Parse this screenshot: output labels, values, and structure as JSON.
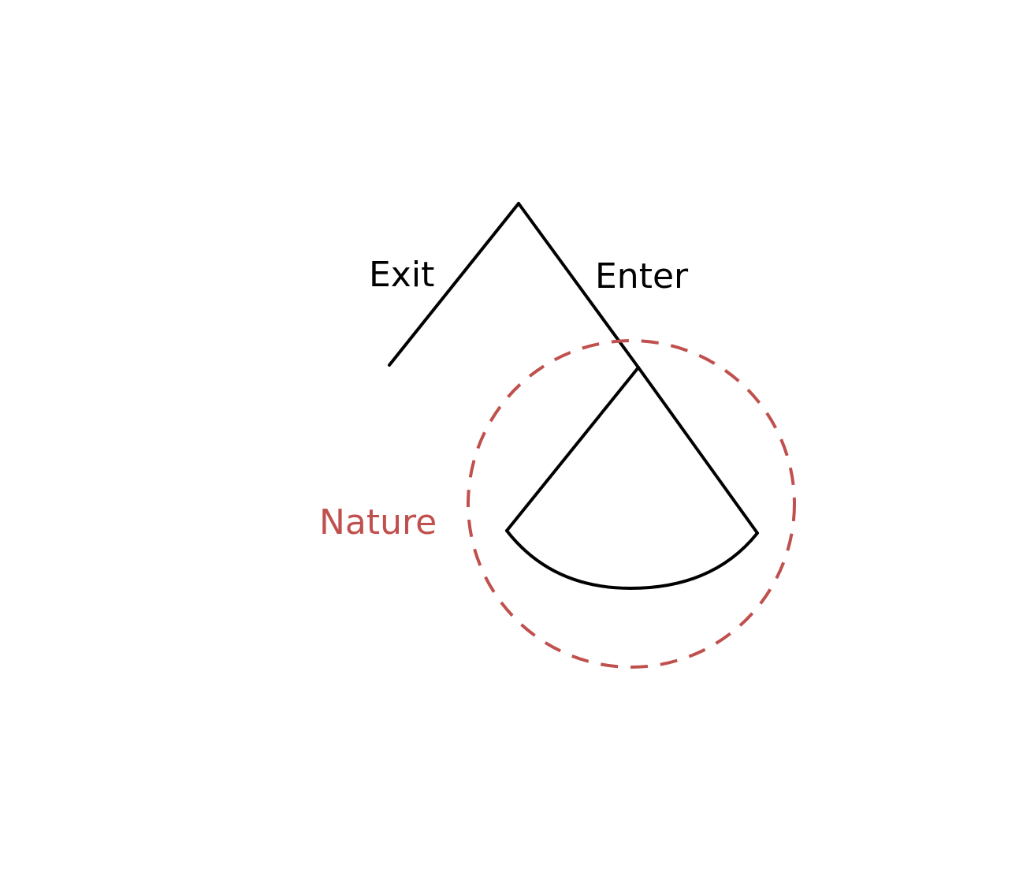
{
  "diagram": {
    "edge_labels": {
      "exit": "Exit",
      "enter": "Enter"
    },
    "highlight_label": "Nature",
    "colors": {
      "line": "#000000",
      "highlight": "#c0504d",
      "background": "#ffffff"
    }
  }
}
